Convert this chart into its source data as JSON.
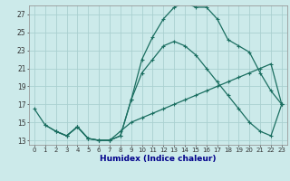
{
  "xlabel": "Humidex (Indice chaleur)",
  "bg_color": "#cceaea",
  "grid_color": "#aad0d0",
  "line_color": "#1a6e60",
  "xlim": [
    -0.5,
    23.5
  ],
  "ylim": [
    12.5,
    28.0
  ],
  "yticks": [
    13,
    15,
    17,
    19,
    21,
    23,
    25,
    27
  ],
  "xticks": [
    0,
    1,
    2,
    3,
    4,
    5,
    6,
    7,
    8,
    9,
    10,
    11,
    12,
    13,
    14,
    15,
    16,
    17,
    18,
    19,
    20,
    21,
    22,
    23
  ],
  "xtick_labels": [
    "0",
    "1",
    "2",
    "3",
    "4",
    "5",
    "6",
    "7",
    "8",
    "9",
    "10",
    "11",
    "12",
    "13",
    "14",
    "15",
    "16",
    "17",
    "18",
    "19",
    "20",
    "21",
    "22",
    "23"
  ],
  "line1_x": [
    0,
    1,
    2,
    3,
    4,
    5,
    6,
    7,
    8,
    9,
    10,
    11,
    12,
    13,
    14,
    15,
    16,
    17,
    18,
    19,
    20,
    21,
    22,
    23
  ],
  "line1_y": [
    16.5,
    14.7,
    14.0,
    13.5,
    14.5,
    13.2,
    13.0,
    13.0,
    13.5,
    17.5,
    22.0,
    24.5,
    26.5,
    27.8,
    28.3,
    27.8,
    27.8,
    26.5,
    24.2,
    23.5,
    22.8,
    20.5,
    18.5,
    17.0
  ],
  "line2_x": [
    2,
    3,
    4,
    5,
    6,
    7,
    8,
    9,
    10,
    11,
    12,
    13,
    14,
    15,
    16,
    17,
    18,
    19,
    20,
    21,
    22,
    23
  ],
  "line2_y": [
    14.0,
    13.5,
    14.5,
    13.2,
    13.0,
    13.0,
    13.5,
    17.5,
    20.5,
    22.0,
    23.5,
    24.0,
    23.5,
    22.5,
    21.0,
    19.5,
    18.0,
    16.5,
    15.0,
    14.0,
    13.5,
    17.0
  ],
  "line3_x": [
    1,
    2,
    3,
    4,
    5,
    6,
    7,
    8,
    9,
    10,
    11,
    12,
    13,
    14,
    15,
    16,
    17,
    18,
    19,
    20,
    21,
    22,
    23
  ],
  "line3_y": [
    14.7,
    14.0,
    13.5,
    14.5,
    13.2,
    13.0,
    13.0,
    14.0,
    15.0,
    15.5,
    16.0,
    16.5,
    17.0,
    17.5,
    18.0,
    18.5,
    19.0,
    19.5,
    20.0,
    20.5,
    21.0,
    21.5,
    17.0
  ]
}
